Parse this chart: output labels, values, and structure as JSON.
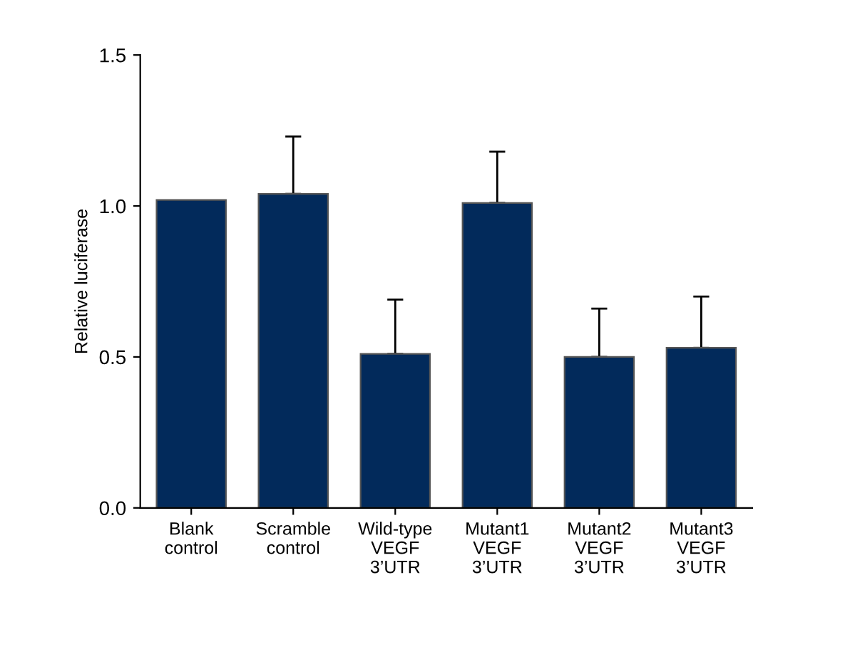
{
  "chart_data": {
    "type": "bar",
    "ylabel": "Relative luciferase",
    "categories": [
      "Blank\ncontrol",
      "Scramble\ncontrol",
      "Wild-type\nVEGF\n3’UTR",
      "Mutant1\nVEGF\n3’UTR",
      "Mutant2\nVEGF\n3’UTR",
      "Mutant3\nVEGF\n3’UTR"
    ],
    "values": [
      1.02,
      1.04,
      0.51,
      1.01,
      0.5,
      0.53
    ],
    "errors": [
      null,
      [
        1.04,
        1.23
      ],
      [
        0.51,
        0.69
      ],
      [
        1.01,
        1.18
      ],
      [
        0.5,
        0.66
      ],
      [
        0.53,
        0.7
      ]
    ],
    "color": "#022a5b",
    "ylim": [
      0,
      1.5
    ],
    "yticks": [
      {
        "value": 0,
        "label": "0.0"
      },
      0.5,
      {
        "value": 1,
        "label": "1.0"
      },
      1.5
    ],
    "grid": false
  }
}
